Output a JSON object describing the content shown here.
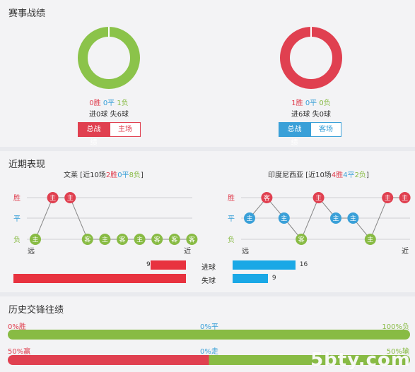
{
  "section1": {
    "title": "赛事战绩",
    "home": {
      "win": "0胜",
      "draw": "0平",
      "loss": "1负",
      "goals": "进0球 失6球",
      "tab_active": "总战绩",
      "tab_inactive": "主场",
      "win_ratio": 0,
      "loss_ratio": 1,
      "ring_color": "#8bc34a"
    },
    "away": {
      "win": "1胜",
      "draw": "0平",
      "loss": "0负",
      "goals": "进6球 失0球",
      "tab_active": "总战绩",
      "tab_inactive": "客场",
      "win_ratio": 1,
      "loss_ratio": 0,
      "ring_color": "#e04050"
    }
  },
  "section2": {
    "title": "近期表现",
    "home_header": {
      "prefix": "文莱 [近10场",
      "win": "2胜",
      "draw": "0平",
      "loss": "8负",
      "suffix": "]"
    },
    "away_header": {
      "prefix": "印度尼西亚 [近10场",
      "win": "4胜",
      "draw": "4平",
      "loss": "2负",
      "suffix": "]"
    },
    "axis": {
      "win": "胜",
      "draw": "平",
      "loss": "负",
      "far": "远",
      "near": "近"
    },
    "home_form": [
      {
        "r": "L",
        "label": "主"
      },
      {
        "r": "W",
        "label": "主"
      },
      {
        "r": "W",
        "label": "主"
      },
      {
        "r": "L",
        "label": "客"
      },
      {
        "r": "L",
        "label": "主"
      },
      {
        "r": "L",
        "label": "客"
      },
      {
        "r": "L",
        "label": "主"
      },
      {
        "r": "L",
        "label": "客"
      },
      {
        "r": "L",
        "label": "客"
      },
      {
        "r": "L",
        "label": "客"
      }
    ],
    "away_form": [
      {
        "r": "D",
        "label": "主"
      },
      {
        "r": "W",
        "label": "客"
      },
      {
        "r": "D",
        "label": "主"
      },
      {
        "r": "L",
        "label": "客"
      },
      {
        "r": "W",
        "label": "主"
      },
      {
        "r": "D",
        "label": "主"
      },
      {
        "r": "D",
        "label": "主"
      },
      {
        "r": "L",
        "label": "主"
      },
      {
        "r": "W",
        "label": "主"
      },
      {
        "r": "W",
        "label": "主"
      }
    ],
    "goals_for": {
      "label": "进球",
      "home": "9",
      "away": "16",
      "home_val": 9,
      "away_val": 16
    },
    "goals_against": {
      "label": "失球",
      "home": "44",
      "away": "9",
      "home_val": 44,
      "away_val": 9
    },
    "colors": {
      "win": "#e04050",
      "draw": "#3aa0d8",
      "loss": "#88bb44",
      "home_bar": "#e8323f",
      "away_bar": "#1aa8e6"
    }
  },
  "section3": {
    "title": "历史交锋往绩",
    "row1": {
      "left": "0%胜",
      "mid": "0%平",
      "right": "100%负",
      "left_pct": 0
    },
    "row2": {
      "left": "50%赢",
      "mid": "0%走",
      "right": "50%输",
      "left_pct": 50
    }
  },
  "watermark": "5bty.com"
}
